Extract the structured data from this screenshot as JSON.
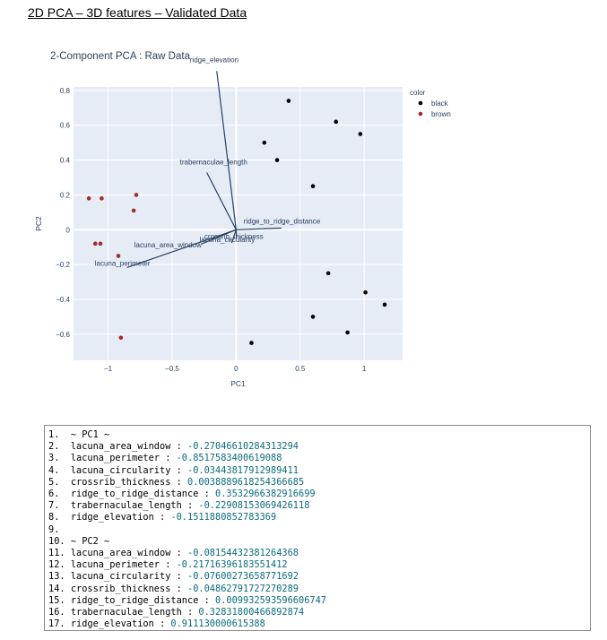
{
  "page": {
    "title": "2D PCA – 3D features – Validated Data"
  },
  "chart_data": {
    "type": "scatter",
    "title": "2-Component PCA : Raw Data",
    "xlabel": "PC1",
    "ylabel": "PC2",
    "xlim": [
      -1.27,
      1.3
    ],
    "ylim": [
      -0.75,
      0.82
    ],
    "xticks": [
      -1,
      -0.5,
      0,
      0.5,
      1
    ],
    "xtick_labels": [
      "−1",
      "−0.5",
      "0",
      "0.5",
      "1"
    ],
    "yticks": [
      -0.6,
      -0.4,
      -0.2,
      0,
      0.2,
      0.4,
      0.6,
      0.8
    ],
    "ytick_labels": [
      "−0.6",
      "−0.4",
      "−0.2",
      "0",
      "0.2",
      "0.4",
      "0.6",
      "0.8"
    ],
    "grid": true,
    "legend": {
      "title": "color",
      "placement": "top-right",
      "entries": [
        {
          "name": "black",
          "color": "#000000"
        },
        {
          "name": "brown",
          "color": "#a52a2a"
        }
      ]
    },
    "series": [
      {
        "name": "black",
        "color": "#000000",
        "points": [
          {
            "x": 0.41,
            "y": 0.74
          },
          {
            "x": 0.78,
            "y": 0.62
          },
          {
            "x": 0.97,
            "y": 0.55
          },
          {
            "x": 0.22,
            "y": 0.5
          },
          {
            "x": 0.32,
            "y": 0.4
          },
          {
            "x": 0.6,
            "y": 0.25
          },
          {
            "x": 0.72,
            "y": -0.25
          },
          {
            "x": 1.01,
            "y": -0.36
          },
          {
            "x": 1.16,
            "y": -0.43
          },
          {
            "x": 0.6,
            "y": -0.5
          },
          {
            "x": 0.87,
            "y": -0.59
          },
          {
            "x": 0.12,
            "y": -0.65
          }
        ]
      },
      {
        "name": "brown",
        "color": "#a52a2a",
        "points": [
          {
            "x": -1.15,
            "y": 0.18
          },
          {
            "x": -1.05,
            "y": 0.18
          },
          {
            "x": -0.78,
            "y": 0.2
          },
          {
            "x": -0.8,
            "y": 0.11
          },
          {
            "x": -1.1,
            "y": -0.08
          },
          {
            "x": -1.06,
            "y": -0.08
          },
          {
            "x": -0.92,
            "y": -0.15
          },
          {
            "x": -0.9,
            "y": -0.62
          }
        ]
      }
    ],
    "loadings": [
      {
        "name": "lacuna_area_window",
        "x": -0.27046610284313294,
        "y": -0.08154432381264368
      },
      {
        "name": "lacuna_perimeter",
        "x": -0.8517583400619088,
        "y": -0.21716396183551412
      },
      {
        "name": "lacuna_circularity",
        "x": -0.03443817912989411,
        "y": -0.07600273658771692
      },
      {
        "name": "crossrib_thickness",
        "x": 0.0038889618254366685,
        "y": -0.04862791727270289
      },
      {
        "name": "ridge_to_ridge_distance",
        "x": 0.3532966382916699,
        "y": 0.009932593596606747
      },
      {
        "name": "trabernaculae_length",
        "x": -0.22908153069426118,
        "y": 0.32831800466892874
      },
      {
        "name": "ridge_elevation",
        "x": -0.1511880852783369,
        "y": 0.911130000615388
      }
    ]
  },
  "code": {
    "lines": [
      {
        "n": "1.",
        "label": "~ PC1 ~",
        "value": ""
      },
      {
        "n": "2.",
        "label": "lacuna_area_window : ",
        "value": "-0.27046610284313294"
      },
      {
        "n": "3.",
        "label": "lacuna_perimeter : ",
        "value": "-0.8517583400619088"
      },
      {
        "n": "4.",
        "label": "lacuna_circularity : ",
        "value": "-0.03443817912989411"
      },
      {
        "n": "5.",
        "label": "crossrib_thickness : ",
        "value": "0.0038889618254366685"
      },
      {
        "n": "6.",
        "label": "ridge_to_ridge_distance : ",
        "value": "0.3532966382916699"
      },
      {
        "n": "7.",
        "label": "trabernaculae_length : ",
        "value": "-0.22908153069426118"
      },
      {
        "n": "8.",
        "label": "ridge_elevation : ",
        "value": "-0.1511880852783369"
      },
      {
        "n": "9.",
        "label": "",
        "value": ""
      },
      {
        "n": "10.",
        "label": "~ PC2 ~",
        "value": ""
      },
      {
        "n": "11.",
        "label": "lacuna_area_window : ",
        "value": "-0.08154432381264368"
      },
      {
        "n": "12.",
        "label": "lacuna_perimeter : ",
        "value": "-0.21716396183551412"
      },
      {
        "n": "13.",
        "label": "lacuna_circularity : ",
        "value": "-0.07600273658771692"
      },
      {
        "n": "14.",
        "label": "crossrib_thickness : ",
        "value": "-0.04862791727270289"
      },
      {
        "n": "15.",
        "label": "ridge_to_ridge_distance : ",
        "value": "0.009932593596606747"
      },
      {
        "n": "16.",
        "label": "trabernaculae_length : ",
        "value": "0.32831800466892874"
      },
      {
        "n": "17.",
        "label": "ridge_elevation : ",
        "value": "0.911130000615388"
      }
    ]
  }
}
